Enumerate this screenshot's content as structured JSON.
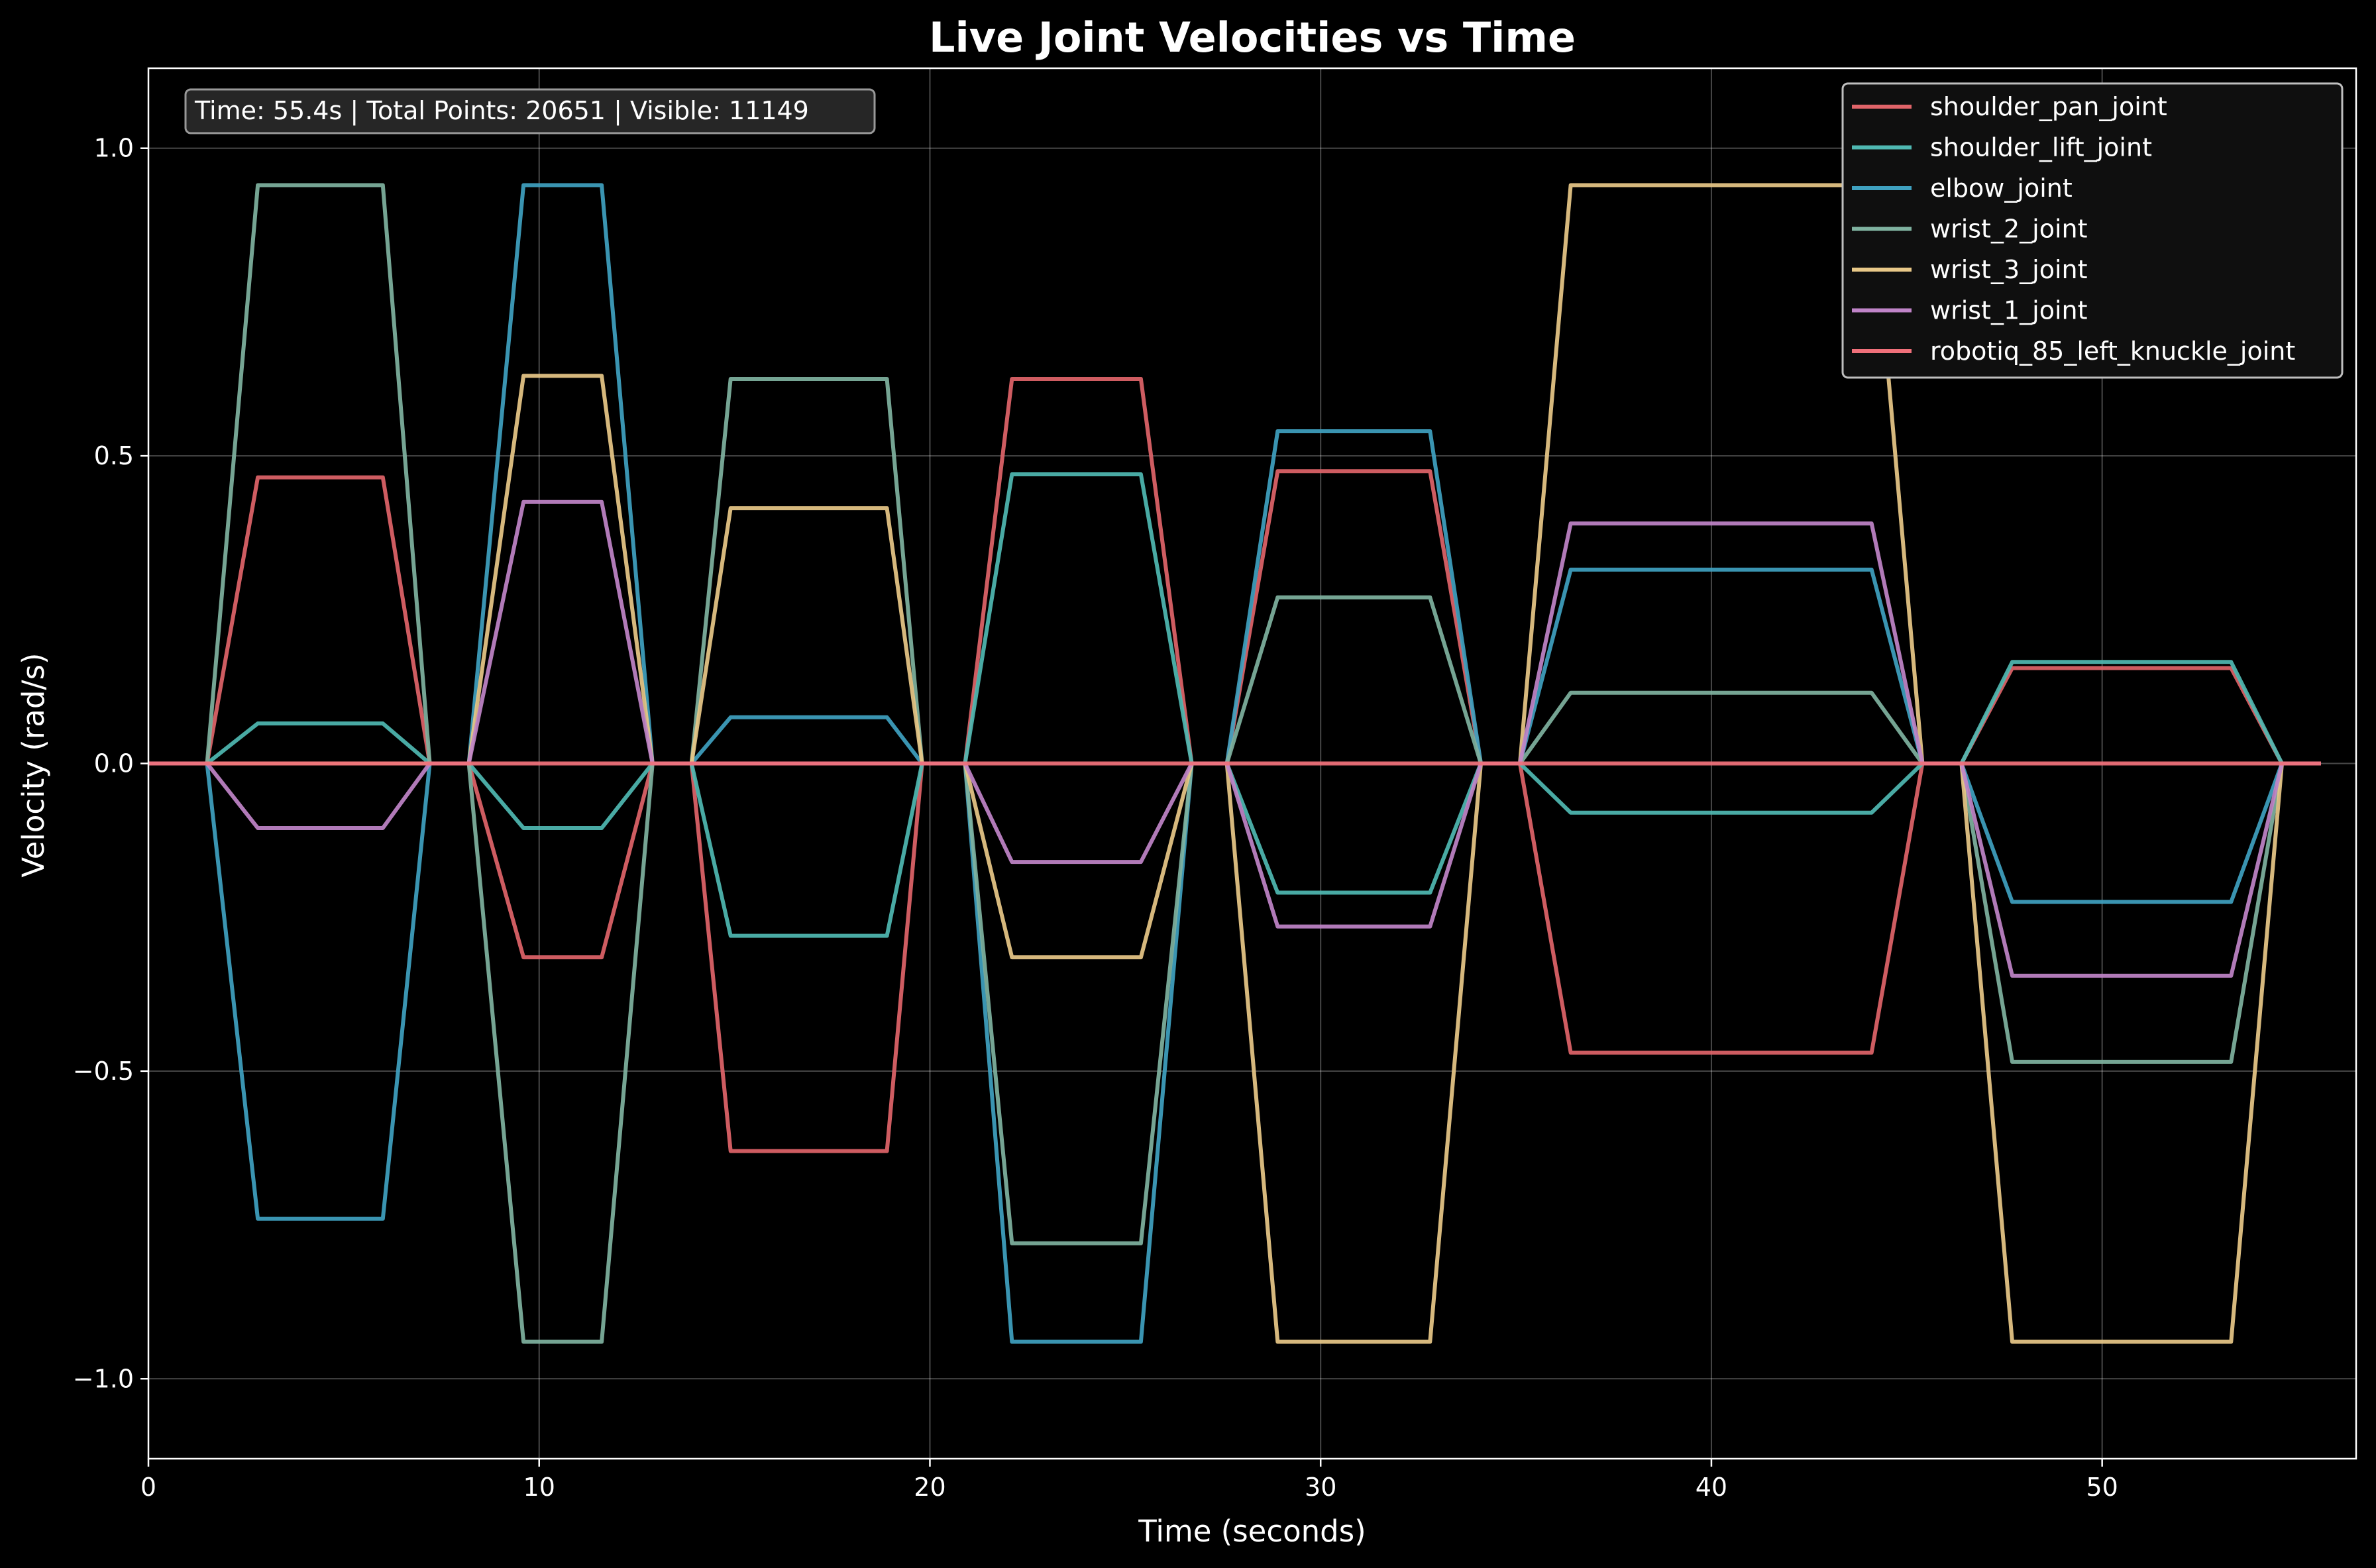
{
  "chart_data": {
    "type": "line",
    "title": "Live Joint Velocities vs Time",
    "xlabel": "Time (seconds)",
    "ylabel": "Velocity (rad/s)",
    "xlim": [
      0,
      56.5
    ],
    "ylim": [
      -1.13,
      1.13
    ],
    "xticks": [
      0,
      10,
      20,
      30,
      40,
      50
    ],
    "yticks": [
      1.0,
      0.5,
      0.0,
      -0.5,
      -1.0
    ],
    "ytick_labels": [
      "1.0",
      "0.5",
      "0.0",
      "−0.5",
      "−1.0"
    ],
    "grid": true,
    "legend_position": "top-right",
    "info_text": "Time: 55.4s | Total Points: 20651 | Visible: 11149",
    "segments": [
      {
        "start": 1.5,
        "ramp_end": 2.8,
        "flat_end": 6.0,
        "end": 7.2
      },
      {
        "start": 8.2,
        "ramp_end": 9.6,
        "flat_end": 11.6,
        "end": 12.9
      },
      {
        "start": 13.9,
        "ramp_end": 14.9,
        "flat_end": 18.9,
        "end": 19.8
      },
      {
        "start": 20.9,
        "ramp_end": 22.1,
        "flat_end": 25.4,
        "end": 26.7
      },
      {
        "start": 27.6,
        "ramp_end": 28.9,
        "flat_end": 32.8,
        "end": 34.1
      },
      {
        "start": 35.1,
        "ramp_end": 36.4,
        "flat_end": 44.1,
        "end": 45.4
      },
      {
        "start": 46.4,
        "ramp_end": 47.7,
        "flat_end": 53.3,
        "end": 54.6
      }
    ],
    "t_end": 55.6,
    "series": [
      {
        "name": "shoulder_pan_joint",
        "color": "#e06469",
        "plateaus": [
          0.465,
          -0.315,
          -0.63,
          0.625,
          0.475,
          -0.47,
          0.155
        ]
      },
      {
        "name": "shoulder_lift_joint",
        "color": "#4fb8b2",
        "plateaus": [
          0.065,
          -0.105,
          -0.28,
          0.47,
          -0.21,
          -0.08,
          0.165
        ]
      },
      {
        "name": "elbow_joint",
        "color": "#3fa1c0",
        "plateaus": [
          -0.74,
          0.94,
          0.075,
          -0.94,
          0.54,
          0.315,
          -0.225
        ]
      },
      {
        "name": "wrist_2_joint",
        "color": "#7fb2a0",
        "plateaus": [
          0.94,
          -0.94,
          0.625,
          -0.78,
          0.27,
          0.115,
          -0.485
        ]
      },
      {
        "name": "wrist_3_joint",
        "color": "#e8c888",
        "plateaus": [
          0.0,
          0.63,
          0.415,
          -0.315,
          -0.94,
          0.94,
          -0.94
        ]
      },
      {
        "name": "wrist_1_joint",
        "color": "#c084c8",
        "plateaus": [
          -0.105,
          0.425,
          0.0,
          -0.16,
          -0.265,
          0.39,
          -0.345
        ]
      },
      {
        "name": "robotiq_85_left_knuckle_joint",
        "color": "#f0707a",
        "plateaus": [
          0,
          0,
          0,
          0,
          0,
          0,
          0
        ]
      }
    ]
  }
}
